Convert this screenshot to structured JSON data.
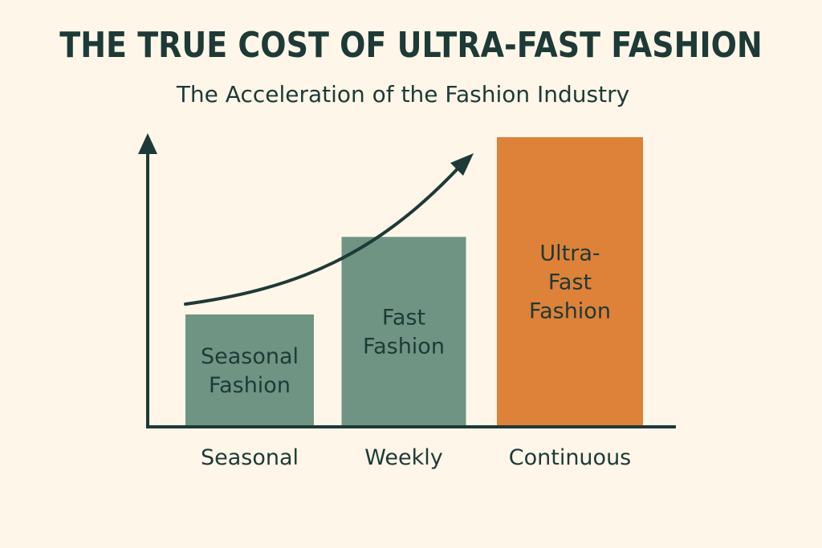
{
  "chart_data": {
    "type": "bar",
    "title": "THE TRUE COST OF ULTRA-FAST FASHION",
    "subtitle": "The Acceleration of the Fashion Industry",
    "xlabel": "",
    "ylabel": "",
    "categories": [
      "Seasonal",
      "Weekly",
      "Continuous"
    ],
    "bar_labels": [
      [
        "Seasonal",
        "Fashion"
      ],
      [
        "Fast",
        "Fashion"
      ],
      [
        "Ultra-",
        "Fast",
        "Fashion"
      ]
    ],
    "values": [
      1,
      1.7,
      2.6
    ],
    "ylim": [
      0,
      2.6
    ],
    "colors": [
      "#6f9484",
      "#6f9484",
      "#de8139"
    ],
    "grid": false,
    "legend": "none",
    "trend_arrow": true
  },
  "colors": {
    "background": "#fdf6e9",
    "text": "#1d3a36",
    "axis": "#1d3a36",
    "seasonal_bar": "#6f9484",
    "fast_bar": "#6f9484",
    "ultra_bar": "#de8139"
  }
}
